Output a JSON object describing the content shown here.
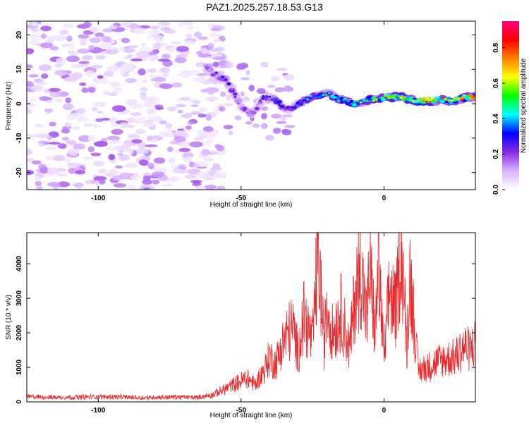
{
  "title": "PAZ1.2025.257.18.53.G13",
  "chart_data": [
    {
      "type": "heatmap",
      "xlabel": "Height of straight line (km)",
      "ylabel": "Frequency (Hz)",
      "xlim": [
        -125,
        32
      ],
      "ylim": [
        -25,
        24
      ],
      "xticks": [
        -100,
        -50,
        0
      ],
      "yticks": [
        20,
        10,
        0,
        -10,
        -20
      ],
      "colorbar": {
        "label": "Normalized spectral amplitude",
        "ticks": [
          0.0,
          0.2,
          0.4,
          0.6,
          0.8
        ],
        "range": [
          0,
          0.95
        ],
        "colors": [
          "#ffffff",
          "#d9b3ff",
          "#8a2be2",
          "#0000ff",
          "#00ffff",
          "#00ff00",
          "#ffff00",
          "#ff8000",
          "#ff0000",
          "#ff0080"
        ]
      },
      "noise_region": {
        "x_range": [
          -125,
          -62
        ],
        "freq_range": [
          -25,
          24
        ]
      },
      "ridge": {
        "x": [
          -62,
          -58,
          -55,
          -50,
          -46,
          -42,
          -38,
          -34,
          -30,
          -25,
          -20,
          -15,
          -10,
          -5,
          0,
          5,
          10,
          15,
          20,
          25,
          30,
          32
        ],
        "frequency": [
          10,
          8,
          7,
          -1,
          -3,
          2,
          1,
          -2,
          0,
          2,
          3,
          1,
          0,
          1,
          2,
          2,
          1,
          1,
          1,
          1,
          2,
          2
        ],
        "amplitude": [
          0.2,
          0.3,
          0.3,
          0.25,
          0.2,
          0.3,
          0.35,
          0.3,
          0.35,
          0.4,
          0.45,
          0.5,
          0.55,
          0.6,
          0.65,
          0.7,
          0.75,
          0.8,
          0.7,
          0.75,
          0.8,
          0.8
        ]
      }
    },
    {
      "type": "line",
      "xlabel": "Height of straight line (km)",
      "ylabel": "SNR (10 * v/v)",
      "xlim": [
        -125,
        32
      ],
      "ylim": [
        0,
        4900
      ],
      "xticks": [
        -100,
        -50,
        0
      ],
      "yticks": [
        0,
        1000,
        2000,
        3000,
        4000
      ],
      "color": "#e8282b",
      "series": [
        {
          "x": [
            -125,
            -115,
            -105,
            -95,
            -85,
            -75,
            -65,
            -60,
            -55,
            -50,
            -48,
            -45,
            -42,
            -40,
            -38,
            -35,
            -32,
            -30,
            -28,
            -25,
            -23,
            -21,
            -20,
            -18,
            -15,
            -12,
            -10,
            -8,
            -6,
            -5,
            -3,
            -2,
            0,
            2,
            4,
            5,
            6,
            8,
            9,
            10,
            12,
            15,
            20,
            25,
            28,
            30,
            32
          ],
          "y": [
            150,
            130,
            140,
            150,
            120,
            140,
            130,
            200,
            400,
            600,
            700,
            500,
            900,
            1300,
            1100,
            1800,
            2200,
            1400,
            2500,
            1700,
            4500,
            1600,
            2900,
            2000,
            2600,
            1500,
            3200,
            3800,
            2300,
            3900,
            1900,
            4200,
            1200,
            3300,
            2600,
            3400,
            4850,
            1500,
            3700,
            2900,
            900,
            1000,
            1200,
            1300,
            1600,
            1500,
            1700
          ]
        }
      ]
    }
  ]
}
